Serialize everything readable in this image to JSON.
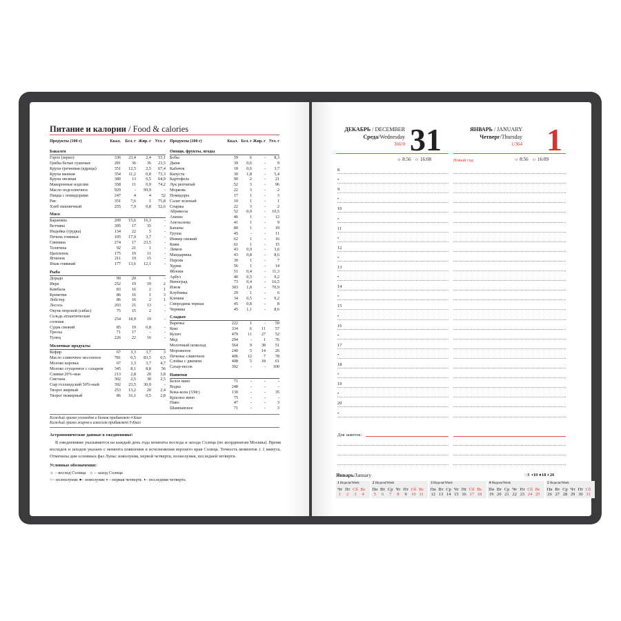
{
  "left": {
    "title_ru": "Питание и калории",
    "title_en": " / Food & calories",
    "header": [
      "Продукты (100 г)",
      "Ккал.",
      "Бел. г",
      "Жир. г",
      "Угл. г"
    ],
    "col1": [
      {
        "title": "Бакалея",
        "rows": [
          [
            "Горох (зерно)",
            "336",
            "23,4",
            "2,4",
            "53,1"
          ],
          [
            "Грибы белые сушеные",
            "281",
            "36",
            "36",
            "23,5"
          ],
          [
            "Крупа гречневая (ядрица)",
            "351",
            "12,5",
            "2,5",
            "67,4"
          ],
          [
            "Крупа манная",
            "354",
            "11,2",
            "0,8",
            "73,3"
          ],
          [
            "Крупа овсяная",
            "380",
            "13",
            "6,5",
            "64,9"
          ],
          [
            "Макаронные изделия",
            "358",
            "11",
            "0,9",
            "74,2"
          ],
          [
            "Масло подсолнечное",
            "929",
            "-",
            "99,9",
            "-"
          ],
          [
            "Пицца с помидорами",
            "247",
            "4",
            "4",
            "52"
          ],
          [
            "Рис",
            "351",
            "7,6",
            "1",
            "75,8"
          ],
          [
            "Хлеб пшеничный",
            "255",
            "7,9",
            "0,8",
            "52,6"
          ]
        ]
      },
      {
        "title": "Мясо",
        "rows": [
          [
            "Баранина",
            "209",
            "15,6",
            "16,3",
            "-"
          ],
          [
            "Ветчина",
            "395",
            "17",
            "35",
            "-"
          ],
          [
            "Индейка (грудка)",
            "134",
            "22",
            "5",
            "-"
          ],
          [
            "Печень говяжья",
            "105",
            "17,9",
            "3,7",
            "-"
          ],
          [
            "Свинина",
            "274",
            "17",
            "23,5",
            "-"
          ],
          [
            "Телятина",
            "92",
            "21",
            "1",
            "-"
          ],
          [
            "Цыпленок",
            "175",
            "19",
            "11",
            "-"
          ],
          [
            "Ягненок",
            "211",
            "19",
            "15",
            "-"
          ],
          [
            "Язык говяжий",
            "177",
            "13,6",
            "12,1",
            "-"
          ]
        ]
      },
      {
        "title": "Рыба",
        "rows": [
          [
            "Дорадо",
            "90",
            "20",
            "1",
            "-"
          ],
          [
            "Икра",
            "252",
            "19",
            "19",
            "2"
          ],
          [
            "Камбала",
            "83",
            "16",
            "2",
            "1"
          ],
          [
            "Креветки",
            "86",
            "16",
            "1",
            "3"
          ],
          [
            "Лобстер",
            "86",
            "16",
            "2",
            "1"
          ],
          [
            "Лосось",
            "203",
            "21",
            "13",
            "-"
          ],
          [
            "Окунь морской (сибас)",
            "75",
            "15",
            "2",
            "-"
          ],
          [
            "Сельдь атлантическая соленая",
            "254",
            "18,9",
            "19",
            "-"
          ],
          [
            "Судак свежий",
            "85",
            "19",
            "0,8",
            "-"
          ],
          [
            "Треска",
            "71",
            "17",
            "-",
            "-"
          ],
          [
            "Тунец",
            "226",
            "22",
            "16",
            "-"
          ]
        ]
      },
      {
        "title": "Молочные продукты",
        "rows": [
          [
            "Кефир",
            "67",
            "3,3",
            "3,7",
            "3"
          ],
          [
            "Масло сливочное несоленое",
            "781",
            "0,5",
            "83,5",
            "0,5"
          ],
          [
            "Молоко коровье",
            "67",
            "3,3",
            "3,7",
            "4,7"
          ],
          [
            "Молоко сгущенное с сахаром",
            "345",
            "8,1",
            "8,8",
            "56"
          ],
          [
            "Сливки 20%-ные",
            "213",
            "2,8",
            "20",
            "3,8"
          ],
          [
            "Сметана",
            "302",
            "2,5",
            "30",
            "2,5"
          ],
          [
            "Сыр голландский 50%-ный",
            "392",
            "23,5",
            "30,9",
            "-"
          ],
          [
            "Творог жирный",
            "253",
            "13,2",
            "20",
            "2,4"
          ],
          [
            "Творог нежирный",
            "86",
            "16,1",
            "0,5",
            "2,8"
          ]
        ]
      }
    ],
    "col2": [
      {
        "title": "Овощи, фрукты, ягоды",
        "rows": [
          [
            "Бобы",
            "59",
            "6",
            "-",
            "8,3"
          ],
          [
            "Дыня",
            "39",
            "0,6",
            "-",
            "9"
          ],
          [
            "Кабачок",
            "18",
            "0,6",
            "-",
            "3,7"
          ],
          [
            "Капуста",
            "30",
            "1,8",
            "-",
            "5,4"
          ],
          [
            "Картофель",
            "90",
            "2",
            "-",
            "21"
          ],
          [
            "Лук репчатый",
            "52",
            "3",
            "-",
            "96"
          ],
          [
            "Морковь",
            "22",
            "3",
            "-",
            "2"
          ],
          [
            "Помидоры",
            "17",
            "1",
            "-",
            "3"
          ],
          [
            "Салат зеленый",
            "10",
            "1",
            "-",
            "1"
          ],
          [
            "Спаржа",
            "22",
            "3",
            "-",
            "2"
          ],
          [
            "Абрикосы",
            "52",
            "0,9",
            "-",
            "10,5"
          ],
          [
            "Ананас",
            "46",
            "1",
            "-",
            "12"
          ],
          [
            "Апельсины",
            "41",
            "1",
            "-",
            "9"
          ],
          [
            "Бананы",
            "80",
            "1",
            "-",
            "19"
          ],
          [
            "Груша",
            "45",
            "-",
            "-",
            "11"
          ],
          [
            "Инжир свежий",
            "62",
            "1",
            "-",
            "16"
          ],
          [
            "Киви",
            "61",
            "1",
            "-",
            "15"
          ],
          [
            "Лимон",
            "43",
            "0,9",
            "-",
            "3,6"
          ],
          [
            "Мандарины",
            "43",
            "0,8",
            "-",
            "8,6"
          ],
          [
            "Персик",
            "30",
            "1",
            "-",
            "7"
          ],
          [
            "Хурма",
            "56",
            "1",
            "-",
            "14"
          ],
          [
            "Яблоки",
            "51",
            "0,4",
            "-",
            "11,3"
          ],
          [
            "Арбуз",
            "40",
            "0,5",
            "-",
            "9,2"
          ],
          [
            "Виноград",
            "73",
            "0,4",
            "-",
            "16,5"
          ],
          [
            "Изюм",
            "303",
            "1,8",
            "-",
            "70,9"
          ],
          [
            "Клубника",
            "29",
            "1",
            "-",
            "6"
          ],
          [
            "Клюква",
            "34",
            "0,5",
            "-",
            "9,2"
          ],
          [
            "Смородина черная",
            "45",
            "0,8",
            "-",
            "8"
          ],
          [
            "Черника",
            "45",
            "1,1",
            "-",
            "8,6"
          ]
        ]
      },
      {
        "title": "Сладкое",
        "rows": [
          [
            "Варенье",
            "222",
            "1",
            "-",
            "59"
          ],
          [
            "Кекс",
            "334",
            "6",
            "11",
            "57"
          ],
          [
            "Кулич",
            "479",
            "11",
            "27",
            "52"
          ],
          [
            "Мед",
            "294",
            "-",
            "1",
            "76"
          ],
          [
            "Молочный шоколад",
            "564",
            "9",
            "38",
            "51"
          ],
          [
            "Мороженое",
            "240",
            "5",
            "14",
            "26"
          ],
          [
            "Печенье сливочное",
            "406",
            "12",
            "7",
            "78"
          ],
          [
            "Слойка с джемом",
            "408",
            "5",
            "18",
            "61"
          ],
          [
            "Сахар-песок",
            "392",
            "-",
            "-",
            "100"
          ]
        ]
      },
      {
        "title": "Напитки",
        "rows": [
          [
            "Белое вино",
            "71",
            "-",
            "-",
            "-"
          ],
          [
            "Водка",
            "248",
            "-",
            "-",
            "-"
          ],
          [
            "Кока-кола (330г)",
            "130",
            "-",
            "-",
            "35"
          ],
          [
            "Красное вино",
            "75",
            "-",
            "-",
            "-"
          ],
          [
            "Пиво",
            "47",
            "-",
            "-",
            "3"
          ],
          [
            "Шампанское",
            "71",
            "-",
            "-",
            "3"
          ]
        ]
      }
    ],
    "note1": "Каждый грамм углеводов и белков прибавляет 4 Ккал",
    "note2": "Каждый грамм жиров и алкоголя прибавляет 9 Ккал",
    "astro_title": "Астрономические данные в ежедневнике:",
    "astro_text": "В ежедневнике указываются на каждый день года моменты восхода и захода Солнца (по координатам Москвы). Время восходов и заходов указано с момента появления и исчезновения верхнего края Солнца. Точность моментов ± 1 минута. Отмечены дни основных фаз Луны: новолуния, первой четверти, полнолуния, последней четверти.",
    "legend_title": "Условные обозначения:",
    "sunrise": "– восход Солнца",
    "sunset": "– заход Солнца",
    "full": "– полнолуние",
    "new": "– новолуние",
    "first": "– первая четверть",
    "last": "– последняя четверть"
  },
  "right": {
    "day1": {
      "month": "ДЕКАБРЬ",
      "month_en": " / DECEMBER",
      "weekday": "Среда",
      "weekday_en": "/Wednesday",
      "count": "366/0",
      "date": "31",
      "sunrise": "8:56",
      "sunset": "16:08"
    },
    "day2": {
      "month": "ЯНВАРЬ",
      "month_en": " / JANUARY",
      "weekday": "Четверг",
      "weekday_en": "/Thursday",
      "count": "1/364",
      "date": "1",
      "holiday": "Новый год",
      "sunrise": "8:56",
      "sunset": "16:09"
    },
    "hours": [
      "8",
      "•",
      "9",
      "•",
      "10",
      "•",
      "11",
      "•",
      "12",
      "•",
      "13",
      "•",
      "14",
      "•",
      "15",
      "•",
      "16",
      "•",
      "17",
      "•",
      "18",
      "•",
      "19",
      "•",
      "20",
      "•"
    ],
    "notes_label": "Для заметок:",
    "calendar": {
      "title": "Январь",
      "title_en": "/January",
      "moon": [
        "3",
        "10",
        "18",
        "26"
      ],
      "weeks": [
        {
          "label": "1",
          "wk": "Неделя/Week",
          "days": [
            "Чт",
            "Пт",
            "Сб",
            "Вс"
          ],
          "dates": [
            "1",
            "2",
            "3",
            "4"
          ],
          "red": [
            1,
            1,
            1,
            1
          ]
        },
        {
          "label": "2",
          "wk": "Неделя/Week",
          "days": [
            "Пн",
            "Вт",
            "Ср",
            "Чт",
            "Пт",
            "Сб",
            "Вс"
          ],
          "dates": [
            "5",
            "6",
            "7",
            "8",
            "9",
            "10",
            "11"
          ],
          "red": [
            1,
            1,
            1,
            1,
            0,
            1,
            1
          ]
        },
        {
          "label": "3",
          "wk": "Неделя/Week",
          "days": [
            "Пн",
            "Вт",
            "Ср",
            "Чт",
            "Пт",
            "Сб",
            "Вс"
          ],
          "dates": [
            "12",
            "13",
            "14",
            "15",
            "16",
            "17",
            "18"
          ],
          "red": [
            0,
            0,
            0,
            0,
            0,
            1,
            1
          ]
        },
        {
          "label": "4",
          "wk": "Неделя/Week",
          "days": [
            "Пн",
            "Вт",
            "Ср",
            "Чт",
            "Пт",
            "Сб",
            "Вс"
          ],
          "dates": [
            "19",
            "20",
            "21",
            "22",
            "23",
            "24",
            "25"
          ],
          "red": [
            0,
            0,
            0,
            0,
            0,
            1,
            1
          ]
        },
        {
          "label": "5",
          "wk": "Неделя/Week",
          "days": [
            "Пн",
            "Вт",
            "Ср",
            "Чт",
            "Пт",
            "Сб"
          ],
          "dates": [
            "26",
            "27",
            "28",
            "29",
            "30",
            "31"
          ],
          "red": [
            0,
            0,
            0,
            0,
            0,
            1
          ]
        }
      ]
    }
  },
  "colors": {
    "accent": "#d6352f",
    "cover": "#3b3b3d"
  }
}
